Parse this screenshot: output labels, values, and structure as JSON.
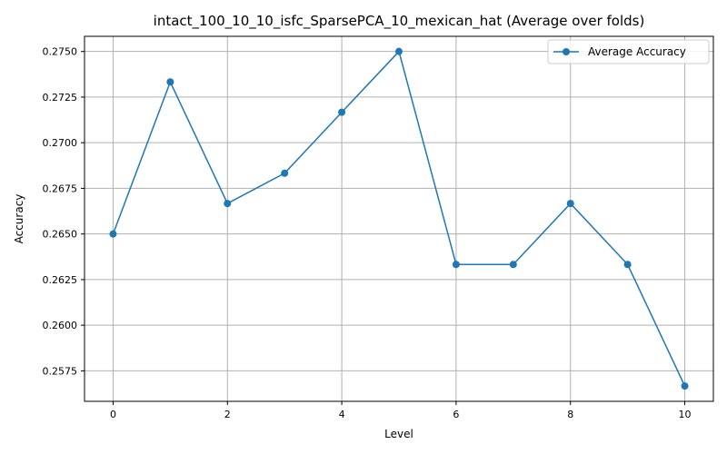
{
  "chart_data": {
    "type": "line",
    "title": "intact_100_10_10_isfc_SparsePCA_10_mexican_hat (Average over folds)",
    "xlabel": "Level",
    "ylabel": "Accuracy",
    "x": [
      0,
      1,
      2,
      3,
      4,
      5,
      6,
      7,
      8,
      9,
      10
    ],
    "series": [
      {
        "name": "Average Accuracy",
        "values": [
          0.265,
          0.27333,
          0.26667,
          0.26833,
          0.27167,
          0.275,
          0.26333,
          0.26333,
          0.26667,
          0.26333,
          0.25667
        ],
        "color": "#1f77b4",
        "marker": "circle"
      }
    ],
    "xlim": [
      -0.5,
      10.5
    ],
    "ylim": [
      0.25583,
      0.27583
    ],
    "x_ticks": [
      0,
      2,
      4,
      6,
      8,
      10
    ],
    "x_tick_labels": [
      "0",
      "2",
      "4",
      "6",
      "8",
      "10"
    ],
    "y_ticks": [
      0.2575,
      0.26,
      0.2625,
      0.265,
      0.2675,
      0.27,
      0.2725,
      0.275
    ],
    "y_tick_labels": [
      "0.2575",
      "0.2600",
      "0.2625",
      "0.2650",
      "0.2675",
      "0.2700",
      "0.2725",
      "0.2750"
    ],
    "grid": true,
    "legend_position": "top-right"
  }
}
